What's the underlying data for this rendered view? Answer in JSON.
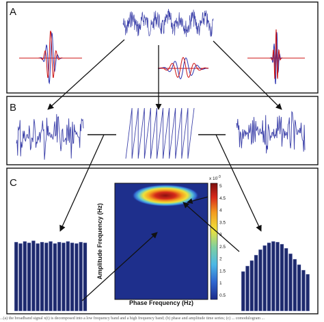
{
  "panels": {
    "a": "A",
    "b": "B",
    "c": "C"
  },
  "heatmap": {
    "xlabel": "Phase Frequency (Hz)",
    "ylabel": "Amplitude Frequency (Hz)",
    "colorbar": {
      "exponent": "x 10",
      "exponent_power": "-3",
      "ticks": [
        "5",
        "4.5",
        "4",
        "3.5",
        "3",
        "2.5",
        "2",
        "1.5",
        "1",
        "0.5"
      ]
    }
  },
  "caption": "...(a) the broadband signal x(t) is decomposed into a low frequency band and a high frequency band; (b) phase and amplitude time series; (c) ... comodulogram ..."
}
